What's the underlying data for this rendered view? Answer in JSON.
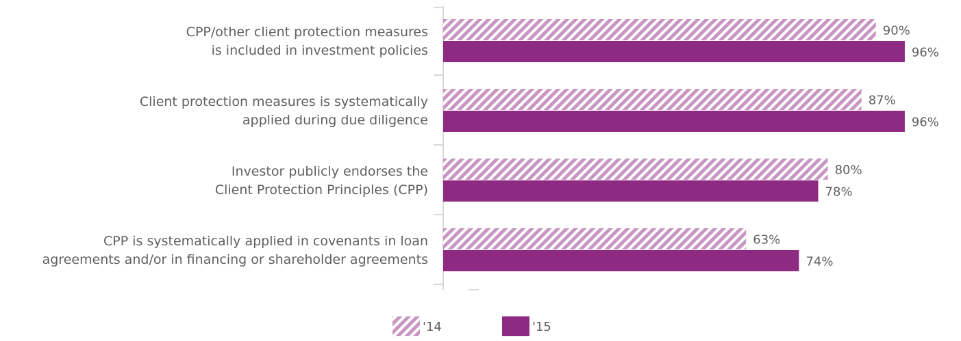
{
  "chart_data": {
    "type": "bar",
    "orientation": "horizontal",
    "categories": [
      [
        "CPP/other client protection measures",
        "is included in investment policies"
      ],
      [
        "Client protection measures is systematically",
        "applied during due diligence"
      ],
      [
        "Investor publicly endorses the",
        "Client Protection Principles (CPP)"
      ],
      [
        "CPP is systematically applied in covenants in loan",
        "agreements and/or in financing or shareholder agreements"
      ]
    ],
    "series": [
      {
        "name": "'14",
        "values": [
          90,
          87,
          80,
          63
        ],
        "value_labels": [
          "90%",
          "87%",
          "80%",
          "63%"
        ],
        "fill": "hatched"
      },
      {
        "name": "'15",
        "values": [
          96,
          96,
          78,
          74
        ],
        "value_labels": [
          "96%",
          "96%",
          "78%",
          "74%"
        ],
        "fill": "solid"
      }
    ],
    "xlim": [
      0,
      100
    ],
    "grid": false,
    "legend_position": "bottom-center",
    "colors": {
      "series_2015": "#8e2a82",
      "series_2014_hatch": "#c996c3",
      "axis": "#d9d9d9",
      "text": "#5f5f5f"
    }
  }
}
